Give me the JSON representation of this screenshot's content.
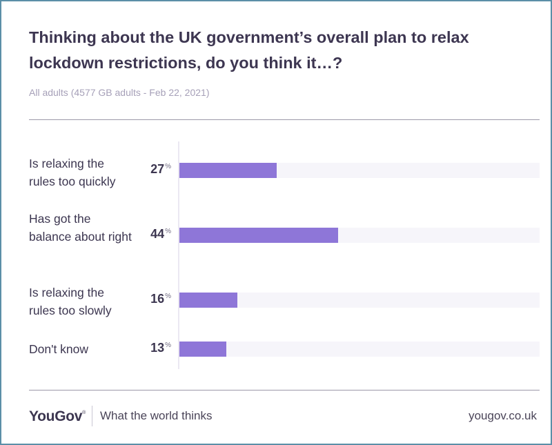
{
  "header": {
    "title": "Thinking about the UK government’s overall plan to relax lockdown restrictions, do you think it…?",
    "subtitle": "All adults (4577 GB adults - Feb 22, 2021)"
  },
  "chart_data": {
    "type": "bar",
    "orientation": "horizontal",
    "categories": [
      "Is relaxing the rules too quickly",
      "Has got the balance about right",
      "Is relaxing the rules too slowly",
      "Don't know"
    ],
    "values": [
      27,
      44,
      16,
      13
    ],
    "value_suffix": "%",
    "xlim": [
      0,
      100
    ],
    "bar_color": "#8e76d8",
    "track_color": "#f6f5fa",
    "grid": false,
    "legend": "none"
  },
  "footer": {
    "logo": "YouGov",
    "tagline": "What the world thinks",
    "url": "yougov.co.uk"
  }
}
